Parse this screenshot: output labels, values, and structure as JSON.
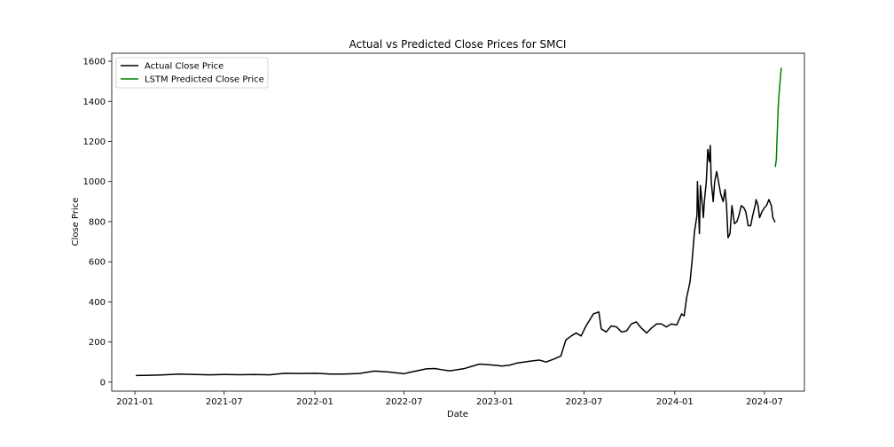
{
  "chart_data": {
    "type": "line",
    "title": "Actual vs Predicted Close Prices for SMCI",
    "xlabel": "Date",
    "ylabel": "Close Price",
    "xlim": [
      "2020-11-15",
      "2024-09-20"
    ],
    "ylim": [
      -45,
      1640
    ],
    "x_ticks": [
      "2021-01",
      "2021-07",
      "2022-01",
      "2022-07",
      "2023-01",
      "2023-07",
      "2024-01",
      "2024-07"
    ],
    "y_ticks": [
      0,
      200,
      400,
      600,
      800,
      1000,
      1200,
      1400,
      1600
    ],
    "grid": false,
    "legend_position": "upper-left",
    "series": [
      {
        "name": "Actual Close Price",
        "color": "#000000",
        "points": [
          [
            "2021-01-04",
            33
          ],
          [
            "2021-02-01",
            34
          ],
          [
            "2021-03-01",
            36
          ],
          [
            "2021-04-01",
            40
          ],
          [
            "2021-05-03",
            38
          ],
          [
            "2021-06-01",
            36
          ],
          [
            "2021-07-01",
            38
          ],
          [
            "2021-08-02",
            37
          ],
          [
            "2021-09-01",
            38
          ],
          [
            "2021-10-01",
            36
          ],
          [
            "2021-11-01",
            44
          ],
          [
            "2021-12-01",
            43
          ],
          [
            "2022-01-03",
            44
          ],
          [
            "2022-02-01",
            40
          ],
          [
            "2022-03-01",
            40
          ],
          [
            "2022-04-01",
            43
          ],
          [
            "2022-05-02",
            55
          ],
          [
            "2022-06-01",
            50
          ],
          [
            "2022-07-01",
            42
          ],
          [
            "2022-07-15",
            50
          ],
          [
            "2022-08-15",
            66
          ],
          [
            "2022-09-01",
            68
          ],
          [
            "2022-09-15",
            62
          ],
          [
            "2022-10-01",
            56
          ],
          [
            "2022-11-01",
            68
          ],
          [
            "2022-12-01",
            90
          ],
          [
            "2023-01-03",
            84
          ],
          [
            "2023-01-15",
            80
          ],
          [
            "2023-02-01",
            85
          ],
          [
            "2023-02-15",
            95
          ],
          [
            "2023-03-01",
            100
          ],
          [
            "2023-03-15",
            105
          ],
          [
            "2023-04-01",
            110
          ],
          [
            "2023-04-15",
            100
          ],
          [
            "2023-05-01",
            115
          ],
          [
            "2023-05-15",
            130
          ],
          [
            "2023-05-25",
            210
          ],
          [
            "2023-06-05",
            230
          ],
          [
            "2023-06-15",
            245
          ],
          [
            "2023-06-25",
            230
          ],
          [
            "2023-07-05",
            280
          ],
          [
            "2023-07-20",
            340
          ],
          [
            "2023-07-31",
            350
          ],
          [
            "2023-08-05",
            265
          ],
          [
            "2023-08-15",
            250
          ],
          [
            "2023-08-25",
            280
          ],
          [
            "2023-09-05",
            275
          ],
          [
            "2023-09-15",
            250
          ],
          [
            "2023-09-25",
            255
          ],
          [
            "2023-10-05",
            290
          ],
          [
            "2023-10-15",
            300
          ],
          [
            "2023-10-25",
            270
          ],
          [
            "2023-11-05",
            245
          ],
          [
            "2023-11-15",
            270
          ],
          [
            "2023-11-25",
            290
          ],
          [
            "2023-12-05",
            290
          ],
          [
            "2023-12-15",
            275
          ],
          [
            "2023-12-25",
            290
          ],
          [
            "2024-01-05",
            285
          ],
          [
            "2024-01-15",
            340
          ],
          [
            "2024-01-20",
            330
          ],
          [
            "2024-01-25",
            420
          ],
          [
            "2024-02-01",
            500
          ],
          [
            "2024-02-05",
            600
          ],
          [
            "2024-02-10",
            750
          ],
          [
            "2024-02-15",
            830
          ],
          [
            "2024-02-16",
            1000
          ],
          [
            "2024-02-20",
            740
          ],
          [
            "2024-02-22",
            980
          ],
          [
            "2024-02-26",
            880
          ],
          [
            "2024-02-28",
            820
          ],
          [
            "2024-03-01",
            900
          ],
          [
            "2024-03-05",
            1000
          ],
          [
            "2024-03-08",
            1160
          ],
          [
            "2024-03-11",
            1100
          ],
          [
            "2024-03-13",
            1180
          ],
          [
            "2024-03-15",
            1000
          ],
          [
            "2024-03-19",
            900
          ],
          [
            "2024-03-22",
            1000
          ],
          [
            "2024-03-26",
            1050
          ],
          [
            "2024-03-29",
            1010
          ],
          [
            "2024-04-03",
            940
          ],
          [
            "2024-04-08",
            900
          ],
          [
            "2024-04-12",
            960
          ],
          [
            "2024-04-15",
            880
          ],
          [
            "2024-04-18",
            720
          ],
          [
            "2024-04-22",
            740
          ],
          [
            "2024-04-26",
            880
          ],
          [
            "2024-05-01",
            790
          ],
          [
            "2024-05-06",
            800
          ],
          [
            "2024-05-10",
            830
          ],
          [
            "2024-05-15",
            880
          ],
          [
            "2024-05-20",
            870
          ],
          [
            "2024-05-24",
            850
          ],
          [
            "2024-05-29",
            780
          ],
          [
            "2024-06-03",
            780
          ],
          [
            "2024-06-07",
            830
          ],
          [
            "2024-06-12",
            880
          ],
          [
            "2024-06-14",
            910
          ],
          [
            "2024-06-18",
            880
          ],
          [
            "2024-06-21",
            820
          ],
          [
            "2024-06-26",
            850
          ],
          [
            "2024-07-01",
            870
          ],
          [
            "2024-07-05",
            880
          ],
          [
            "2024-07-10",
            910
          ],
          [
            "2024-07-15",
            880
          ],
          [
            "2024-07-18",
            820
          ],
          [
            "2024-07-22",
            800
          ]
        ]
      },
      {
        "name": "LSTM Predicted Close Price",
        "color": "#008000",
        "points": [
          [
            "2024-07-23",
            1075
          ],
          [
            "2024-07-25",
            1110
          ],
          [
            "2024-07-27",
            1250
          ],
          [
            "2024-07-29",
            1380
          ],
          [
            "2024-07-31",
            1450
          ],
          [
            "2024-08-02",
            1510
          ],
          [
            "2024-08-04",
            1565
          ]
        ]
      }
    ]
  }
}
